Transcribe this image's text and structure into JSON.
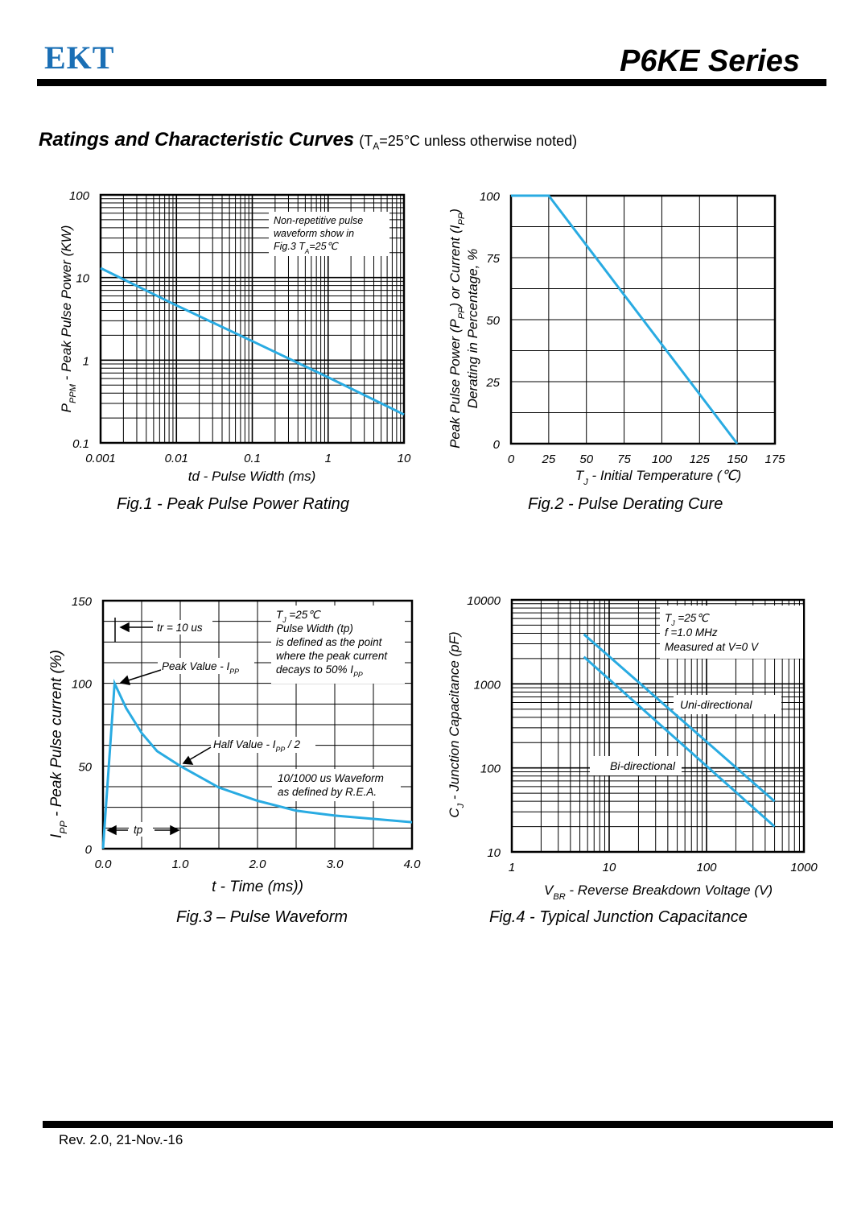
{
  "header": {
    "logo": "EKT",
    "series": "P6KE  Series"
  },
  "section": {
    "title": "Ratings and Characteristic Curves",
    "note_prefix": "(T",
    "note_sub": "A",
    "note_suffix": "=25°C unless otherwise noted)"
  },
  "footer": {
    "revision": "Rev. 2.0, 21-Nov.-16"
  },
  "colors": {
    "curve": "#29abe2",
    "grid": "#000000"
  },
  "chart_data": [
    {
      "id": "fig1",
      "type": "line",
      "caption": "Fig.1 - Peak Pulse Power Rating",
      "xlabel": "td - Pulse Width (ms)",
      "ylabel_main": "P",
      "ylabel_sub": "PPM",
      "ylabel_rest": " - Peak Pulse Power  (KW)",
      "xscale": "log",
      "yscale": "log",
      "xlim": [
        0.001,
        10
      ],
      "ylim": [
        0.1,
        100
      ],
      "xticks": [
        0.001,
        0.01,
        0.1,
        1,
        10
      ],
      "xtick_labels": [
        "0.001",
        "0.01",
        "0.1",
        "1",
        "10"
      ],
      "yticks": [
        0.1,
        1,
        10,
        100
      ],
      "ytick_labels": [
        "0.1",
        "1",
        "10",
        "100"
      ],
      "annotation": [
        "Non-repetitive pulse",
        "waveform show in",
        "Fig.3  T",
        "A",
        "=25℃"
      ],
      "series": [
        {
          "x": [
            0.001,
            0.01,
            0.1,
            1,
            10
          ],
          "y": [
            13,
            4.6,
            1.7,
            0.62,
            0.22
          ]
        }
      ]
    },
    {
      "id": "fig2",
      "type": "line",
      "caption": "Fig.2 - Pulse Derating Cure",
      "xlabel_main": "T",
      "xlabel_sub": "J",
      "xlabel_rest": " - Initial Temperature (℃)",
      "ylabel_line1_a": "Peak Pulse Power (P",
      "ylabel_line1_sub1": "PP",
      "ylabel_line1_b": ") or Current (I",
      "ylabel_line1_sub2": "PP",
      "ylabel_line1_c": ")",
      "ylabel_line2": "Derating in Percentage, %",
      "xlim": [
        0,
        175
      ],
      "ylim": [
        0,
        100
      ],
      "xticks": [
        0,
        25,
        50,
        75,
        100,
        125,
        150,
        175
      ],
      "xtick_labels": [
        "0",
        "25",
        "50",
        "75",
        "100",
        "125",
        "150",
        "175"
      ],
      "yticks": [
        0,
        25,
        50,
        75,
        100
      ],
      "ytick_labels": [
        "0",
        "25",
        "50",
        "75",
        "100"
      ],
      "series": [
        {
          "x": [
            0,
            25,
            150
          ],
          "y": [
            100,
            100,
            0
          ]
        }
      ]
    },
    {
      "id": "fig3",
      "type": "line",
      "caption": "Fig.3 – Pulse Waveform",
      "xlabel": "t - Time (ms))",
      "ylabel_main": "I",
      "ylabel_sub": "PP",
      "ylabel_rest": " - Peak Pulse current (%)",
      "xlim": [
        0,
        4
      ],
      "ylim": [
        0,
        150
      ],
      "xticks": [
        0,
        1,
        2,
        3,
        4
      ],
      "xtick_labels": [
        "0.0",
        "1.0",
        "2.0",
        "3.0",
        "4.0"
      ],
      "yticks": [
        0,
        50,
        100,
        150
      ],
      "ytick_labels": [
        "0",
        "50",
        "100",
        "150"
      ],
      "annotations": {
        "tr": "tr = 10 us",
        "peak_a": "Peak Value - I",
        "peak_sub": "PP",
        "half_a": "Half Value - I",
        "half_sub": "PP",
        "half_b": " / 2",
        "tp": "tp",
        "box1": [
          "T",
          "J",
          " =25℃",
          "Pulse Width (tp)",
          "is defined as the point",
          "where the peak current",
          "decays to 50% I",
          "PP"
        ],
        "box2": [
          "10/1000 us Waveform",
          "as defined by R.E.A."
        ]
      },
      "series": [
        {
          "x": [
            0,
            0.15,
            0.3,
            0.5,
            0.7,
            1.0,
            1.5,
            2.0,
            2.5,
            3.0,
            3.5,
            4.0
          ],
          "y": [
            0,
            100,
            85,
            70,
            59,
            50,
            37,
            29,
            23,
            20,
            18,
            16
          ]
        }
      ]
    },
    {
      "id": "fig4",
      "type": "line",
      "caption": "Fig.4 - Typical Junction Capacitance",
      "xlabel_main": "V",
      "xlabel_sub": "BR",
      "xlabel_rest": " - Reverse Breakdown Voltage (V)",
      "ylabel_main": "C",
      "ylabel_sub": "J",
      "ylabel_rest": " - Junction Capacitance (pF)",
      "xscale": "log",
      "yscale": "log",
      "xlim": [
        1,
        1000
      ],
      "ylim": [
        10,
        10000
      ],
      "xticks": [
        1,
        10,
        100,
        1000
      ],
      "xtick_labels": [
        "1",
        "10",
        "100",
        "1000"
      ],
      "yticks": [
        10,
        100,
        1000,
        10000
      ],
      "ytick_labels": [
        "10",
        "100",
        "1000",
        "10000"
      ],
      "annotation": [
        "T",
        "J",
        " =25℃",
        "f =1.0 MHz",
        "Measured at V=0 V"
      ],
      "series": [
        {
          "name": "Uni-directional",
          "x": [
            5.5,
            500
          ],
          "y": [
            3900,
            40
          ]
        },
        {
          "name": "Bi-directional",
          "x": [
            5.5,
            500
          ],
          "y": [
            2100,
            20
          ]
        }
      ]
    }
  ]
}
